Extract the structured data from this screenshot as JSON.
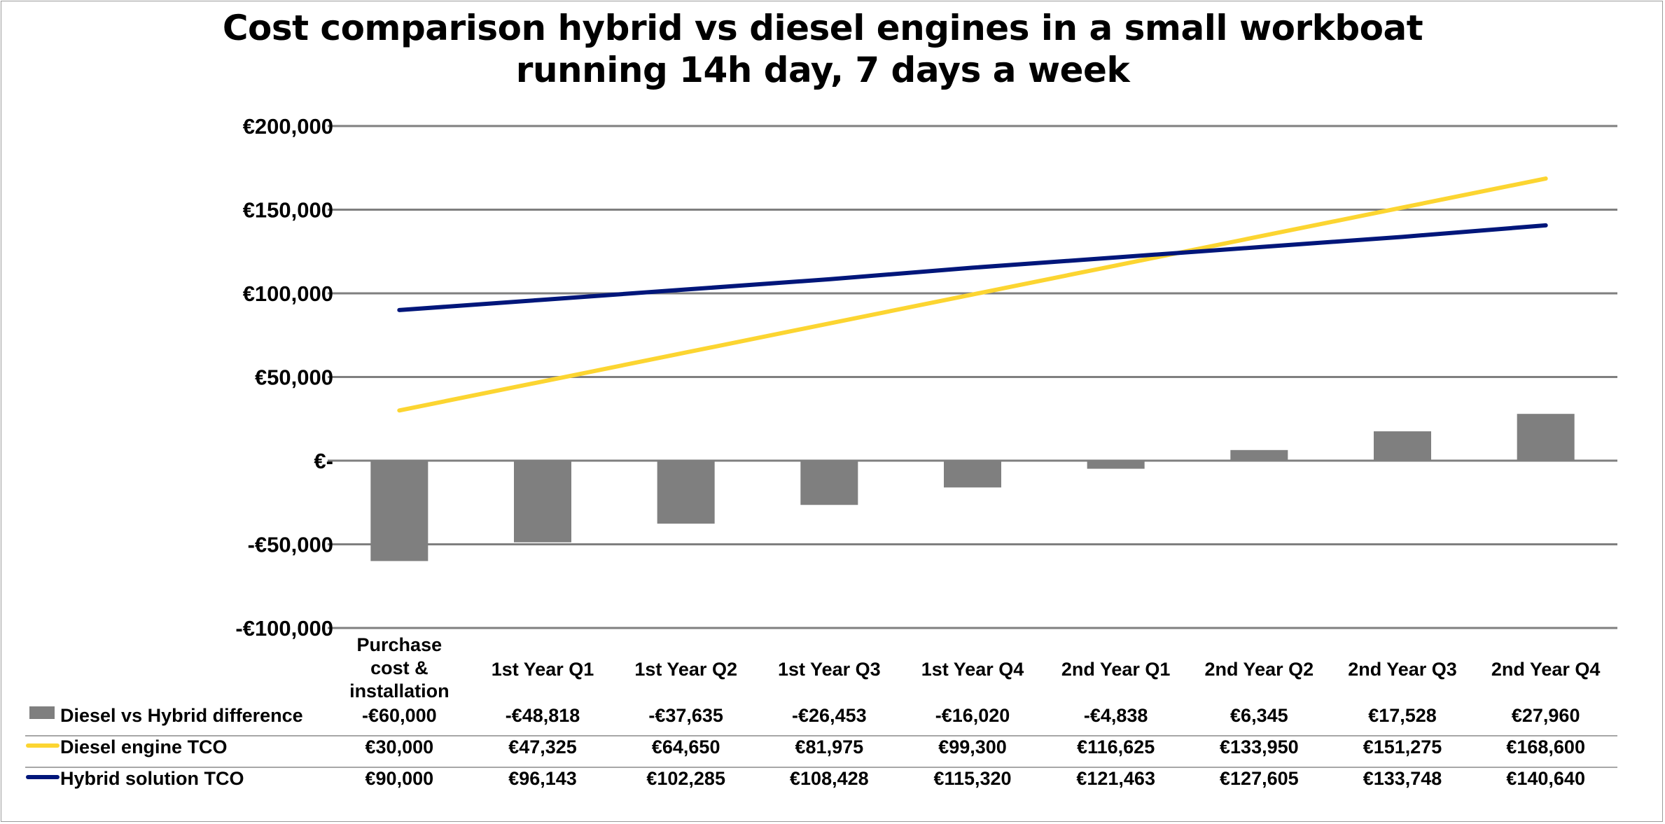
{
  "colors": {
    "difference": "#7f7f7f",
    "diesel": "#fcd531",
    "hybrid": "#00167a",
    "grid": "#7f7f7f"
  },
  "chart_data": {
    "type": "bar",
    "title_lines": [
      "Cost comparison hybrid vs diesel engines in a small workboat",
      "running 14h day, 7 days a week"
    ],
    "categories": [
      [
        "Purchase",
        "cost &",
        "installation"
      ],
      [
        "1st Year Q1"
      ],
      [
        "1st Year Q2"
      ],
      [
        "1st Year Q3"
      ],
      [
        "1st Year Q4"
      ],
      [
        "2nd Year Q1"
      ],
      [
        "2nd Year Q2"
      ],
      [
        "2nd Year Q3"
      ],
      [
        "2nd Year Q4"
      ]
    ],
    "ylim": [
      -100000,
      200000
    ],
    "yticks": [
      200000,
      150000,
      100000,
      50000,
      0,
      -50000,
      -100000
    ],
    "ytick_labels": [
      "€200,000",
      "€150,000",
      "€100,000",
      "€50,000",
      "€-",
      "-€50,000",
      "-€100,000"
    ],
    "grid": true,
    "legend": "data table below the plot",
    "series": [
      {
        "name": "Diesel vs Hybrid difference",
        "type": "bar",
        "values": [
          -60000,
          -48818,
          -37635,
          -26453,
          -16020,
          -4838,
          6345,
          17528,
          27960
        ],
        "labels": [
          "-€60,000",
          "-€48,818",
          "-€37,635",
          "-€26,453",
          "-€16,020",
          "-€4,838",
          "€6,345",
          "€17,528",
          "€27,960"
        ]
      },
      {
        "name": "Diesel engine TCO",
        "type": "line",
        "values": [
          30000,
          47325,
          64650,
          81975,
          99300,
          116625,
          133950,
          151275,
          168600
        ],
        "labels": [
          "€30,000",
          "€47,325",
          "€64,650",
          "€81,975",
          "€99,300",
          "€116,625",
          "€133,950",
          "€151,275",
          "€168,600"
        ]
      },
      {
        "name": "Hybrid solution TCO",
        "type": "line",
        "values": [
          90000,
          96143,
          102285,
          108428,
          115320,
          121463,
          127605,
          133748,
          140640
        ],
        "labels": [
          "€90,000",
          "€96,143",
          "€102,285",
          "€108,428",
          "€115,320",
          "€121,463",
          "€127,605",
          "€133,748",
          "€140,640"
        ]
      }
    ]
  }
}
